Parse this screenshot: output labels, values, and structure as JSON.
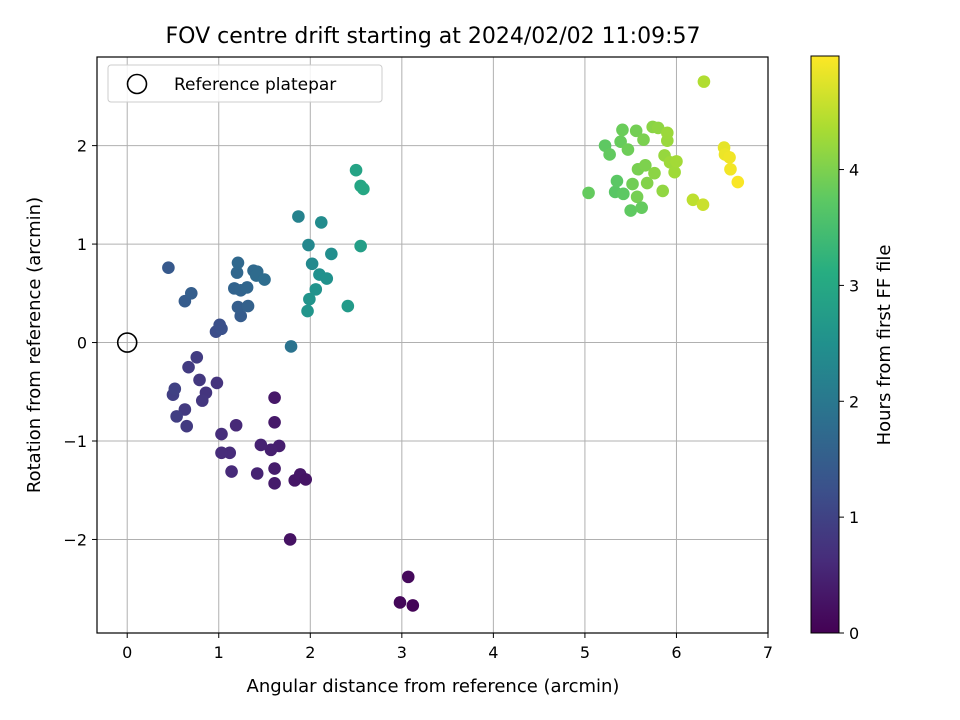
{
  "chart_data": {
    "type": "scatter",
    "title": "FOV centre drift starting at 2024/02/02 11:09:57",
    "xlabel": "Angular distance from reference (arcmin)",
    "ylabel": "Rotation from reference (arcmin)",
    "xlim": [
      -0.33,
      7.0
    ],
    "ylim": [
      -2.95,
      2.9
    ],
    "xticks": [
      "0",
      "1",
      "2",
      "3",
      "4",
      "5",
      "6",
      "7"
    ],
    "xtick_values": [
      0,
      1,
      2,
      3,
      4,
      5,
      6,
      7
    ],
    "yticks": [
      "−2",
      "−1",
      "0",
      "1",
      "2"
    ],
    "ytick_values": [
      -2,
      -1,
      0,
      1,
      2
    ],
    "grid": true,
    "legend": {
      "placement": "top-left",
      "entries": [
        {
          "label": "Reference platepar",
          "marker": "open-circle"
        }
      ]
    },
    "reference_point": {
      "x": 0,
      "y": 0
    },
    "colorbar": {
      "label": "Hours from first FF file",
      "colormap": "viridis",
      "range": [
        0,
        4.98
      ],
      "ticks": [
        "0",
        "1",
        "2",
        "3",
        "4"
      ],
      "tick_values": [
        0,
        1,
        2,
        3,
        4
      ]
    },
    "colormap_stops": [
      "#440154",
      "#472c7a",
      "#3b518b",
      "#2c718e",
      "#21908d",
      "#27ad81",
      "#5cc863",
      "#aadc32",
      "#fde725"
    ],
    "points": [
      {
        "x": 3.12,
        "y": -2.67,
        "h": 0.05
      },
      {
        "x": 2.98,
        "y": -2.64,
        "h": 0.08
      },
      {
        "x": 3.07,
        "y": -2.38,
        "h": 0.12
      },
      {
        "x": 1.78,
        "y": -2.0,
        "h": 0.25
      },
      {
        "x": 1.83,
        "y": -1.4,
        "h": 0.3
      },
      {
        "x": 1.89,
        "y": -1.34,
        "h": 0.32
      },
      {
        "x": 1.95,
        "y": -1.39,
        "h": 0.28
      },
      {
        "x": 1.61,
        "y": -1.43,
        "h": 0.38
      },
      {
        "x": 1.61,
        "y": -1.28,
        "h": 0.4
      },
      {
        "x": 1.66,
        "y": -1.05,
        "h": 0.42
      },
      {
        "x": 1.57,
        "y": -1.09,
        "h": 0.45
      },
      {
        "x": 1.46,
        "y": -1.04,
        "h": 0.48
      },
      {
        "x": 1.42,
        "y": -1.33,
        "h": 0.5
      },
      {
        "x": 1.61,
        "y": -0.81,
        "h": 0.35
      },
      {
        "x": 1.61,
        "y": -0.56,
        "h": 0.33
      },
      {
        "x": 1.14,
        "y": -1.31,
        "h": 0.6
      },
      {
        "x": 1.12,
        "y": -1.12,
        "h": 0.62
      },
      {
        "x": 1.03,
        "y": -1.12,
        "h": 0.64
      },
      {
        "x": 1.03,
        "y": -0.93,
        "h": 0.66
      },
      {
        "x": 1.19,
        "y": -0.84,
        "h": 0.58
      },
      {
        "x": 0.98,
        "y": -0.41,
        "h": 0.75
      },
      {
        "x": 0.86,
        "y": -0.51,
        "h": 0.78
      },
      {
        "x": 0.82,
        "y": -0.59,
        "h": 0.8
      },
      {
        "x": 0.79,
        "y": -0.38,
        "h": 0.82
      },
      {
        "x": 0.76,
        "y": -0.15,
        "h": 0.9
      },
      {
        "x": 0.67,
        "y": -0.25,
        "h": 0.88
      },
      {
        "x": 0.63,
        "y": -0.68,
        "h": 0.85
      },
      {
        "x": 0.65,
        "y": -0.85,
        "h": 0.86
      },
      {
        "x": 0.54,
        "y": -0.75,
        "h": 0.92
      },
      {
        "x": 0.5,
        "y": -0.53,
        "h": 0.95
      },
      {
        "x": 0.52,
        "y": -0.47,
        "h": 0.97
      },
      {
        "x": 0.97,
        "y": 0.11,
        "h": 1.2
      },
      {
        "x": 1.03,
        "y": 0.14,
        "h": 1.25
      },
      {
        "x": 1.01,
        "y": 0.18,
        "h": 1.22
      },
      {
        "x": 1.24,
        "y": 0.27,
        "h": 1.45
      },
      {
        "x": 1.21,
        "y": 0.36,
        "h": 1.5
      },
      {
        "x": 1.32,
        "y": 0.37,
        "h": 1.55
      },
      {
        "x": 1.17,
        "y": 0.55,
        "h": 1.6
      },
      {
        "x": 1.24,
        "y": 0.53,
        "h": 1.62
      },
      {
        "x": 1.31,
        "y": 0.56,
        "h": 1.65
      },
      {
        "x": 1.2,
        "y": 0.71,
        "h": 1.68
      },
      {
        "x": 1.21,
        "y": 0.81,
        "h": 1.7
      },
      {
        "x": 1.38,
        "y": 0.73,
        "h": 1.72
      },
      {
        "x": 1.42,
        "y": 0.72,
        "h": 1.74
      },
      {
        "x": 1.41,
        "y": 0.68,
        "h": 1.76
      },
      {
        "x": 1.5,
        "y": 0.64,
        "h": 1.78
      },
      {
        "x": 0.45,
        "y": 0.76,
        "h": 1.4
      },
      {
        "x": 0.63,
        "y": 0.42,
        "h": 1.45
      },
      {
        "x": 0.7,
        "y": 0.5,
        "h": 1.5
      },
      {
        "x": 1.79,
        "y": -0.04,
        "h": 1.9
      },
      {
        "x": 1.87,
        "y": 1.28,
        "h": 2.2
      },
      {
        "x": 1.98,
        "y": 0.99,
        "h": 2.3
      },
      {
        "x": 2.02,
        "y": 0.8,
        "h": 2.35
      },
      {
        "x": 2.12,
        "y": 1.22,
        "h": 2.4
      },
      {
        "x": 2.23,
        "y": 0.9,
        "h": 2.45
      },
      {
        "x": 2.1,
        "y": 0.69,
        "h": 2.5
      },
      {
        "x": 2.18,
        "y": 0.65,
        "h": 2.52
      },
      {
        "x": 2.06,
        "y": 0.54,
        "h": 2.55
      },
      {
        "x": 1.99,
        "y": 0.44,
        "h": 2.58
      },
      {
        "x": 1.97,
        "y": 0.32,
        "h": 2.6
      },
      {
        "x": 2.41,
        "y": 0.37,
        "h": 2.7
      },
      {
        "x": 2.55,
        "y": 0.98,
        "h": 2.8
      },
      {
        "x": 2.5,
        "y": 1.75,
        "h": 2.9
      },
      {
        "x": 2.55,
        "y": 1.59,
        "h": 2.95
      },
      {
        "x": 2.58,
        "y": 1.56,
        "h": 2.98
      },
      {
        "x": 5.04,
        "y": 1.52,
        "h": 3.8
      },
      {
        "x": 5.22,
        "y": 2.0,
        "h": 3.75
      },
      {
        "x": 5.27,
        "y": 1.91,
        "h": 3.78
      },
      {
        "x": 5.33,
        "y": 1.53,
        "h": 3.7
      },
      {
        "x": 5.35,
        "y": 1.64,
        "h": 3.72
      },
      {
        "x": 5.39,
        "y": 2.04,
        "h": 3.82
      },
      {
        "x": 5.41,
        "y": 2.16,
        "h": 3.85
      },
      {
        "x": 5.42,
        "y": 1.51,
        "h": 3.74
      },
      {
        "x": 5.47,
        "y": 1.96,
        "h": 3.88
      },
      {
        "x": 5.5,
        "y": 1.34,
        "h": 3.76
      },
      {
        "x": 5.52,
        "y": 1.61,
        "h": 3.9
      },
      {
        "x": 5.56,
        "y": 2.15,
        "h": 3.92
      },
      {
        "x": 5.57,
        "y": 1.48,
        "h": 3.94
      },
      {
        "x": 5.58,
        "y": 1.76,
        "h": 3.96
      },
      {
        "x": 5.62,
        "y": 1.37,
        "h": 3.8
      },
      {
        "x": 5.64,
        "y": 2.06,
        "h": 3.98
      },
      {
        "x": 5.66,
        "y": 1.8,
        "h": 4.0
      },
      {
        "x": 5.68,
        "y": 1.62,
        "h": 4.05
      },
      {
        "x": 5.74,
        "y": 2.19,
        "h": 4.1
      },
      {
        "x": 5.76,
        "y": 1.72,
        "h": 4.12
      },
      {
        "x": 5.8,
        "y": 2.18,
        "h": 4.14
      },
      {
        "x": 5.85,
        "y": 1.54,
        "h": 4.16
      },
      {
        "x": 5.87,
        "y": 1.9,
        "h": 4.2
      },
      {
        "x": 5.9,
        "y": 2.05,
        "h": 4.22
      },
      {
        "x": 5.9,
        "y": 2.13,
        "h": 4.24
      },
      {
        "x": 5.93,
        "y": 1.83,
        "h": 4.26
      },
      {
        "x": 5.98,
        "y": 1.73,
        "h": 4.28
      },
      {
        "x": 6.0,
        "y": 1.84,
        "h": 4.3
      },
      {
        "x": 6.18,
        "y": 1.45,
        "h": 4.5
      },
      {
        "x": 6.29,
        "y": 1.4,
        "h": 4.6
      },
      {
        "x": 6.3,
        "y": 2.65,
        "h": 4.4
      },
      {
        "x": 6.52,
        "y": 1.98,
        "h": 4.8
      },
      {
        "x": 6.53,
        "y": 1.91,
        "h": 4.85
      },
      {
        "x": 6.58,
        "y": 1.88,
        "h": 4.88
      },
      {
        "x": 6.59,
        "y": 1.76,
        "h": 4.9
      },
      {
        "x": 6.67,
        "y": 1.63,
        "h": 4.95
      }
    ]
  }
}
